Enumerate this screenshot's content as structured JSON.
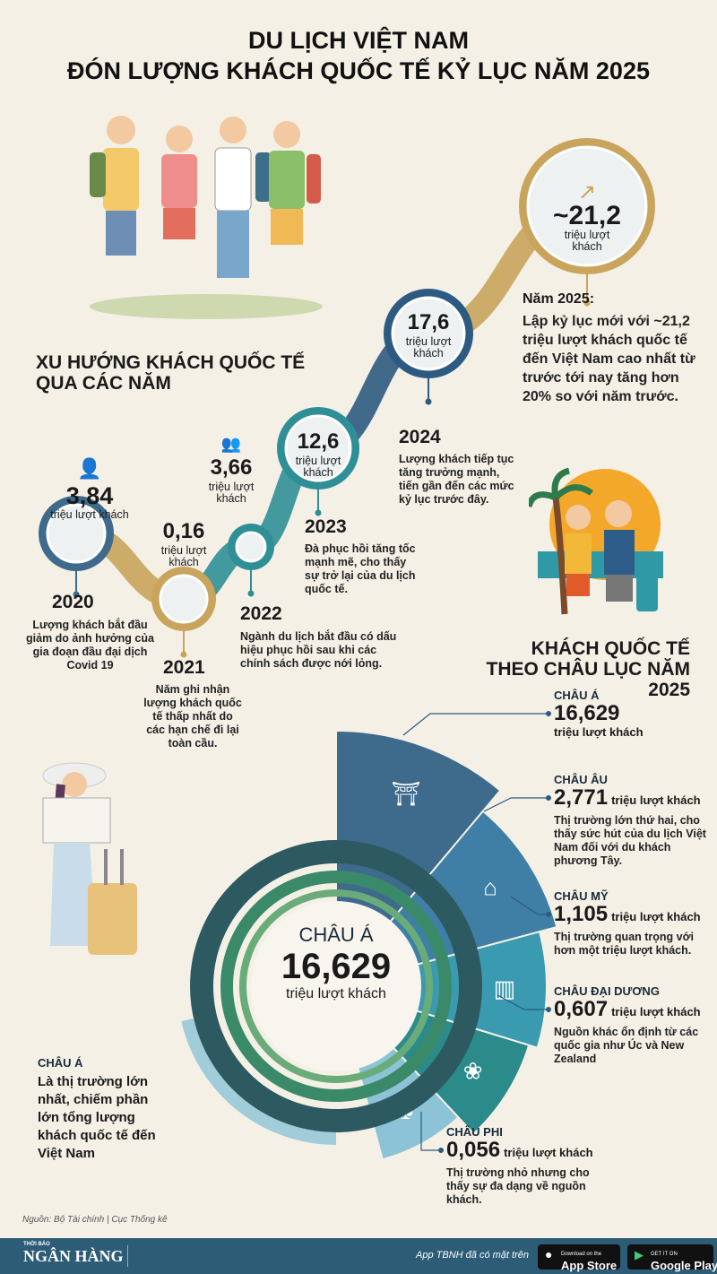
{
  "title": {
    "line1": "DU LỊCH VIỆT NAM",
    "line2": "ĐÓN LƯỢNG KHÁCH QUỐC TẾ KỶ LỤC NĂM 2025"
  },
  "trend": {
    "heading_line1": "XU HƯỚNG KHÁCH QUỐC TẾ",
    "heading_line2": "QUA CÁC NĂM"
  },
  "unit_label": "triệu lượt khách",
  "chart_data": [
    {
      "type": "line",
      "title": "XU HƯỚNG KHÁCH QUỐC TẾ QUA CÁC NĂM",
      "unit": "triệu lượt khách",
      "points": [
        {
          "year": "2020",
          "value": 3.84,
          "label": "3,84",
          "desc": "Lượng khách bắt đầu giảm do ảnh hưởng của gia đoạn đầu đại dịch Covid 19",
          "color": "#3e6a8c"
        },
        {
          "year": "2021",
          "value": 0.16,
          "label": "0,16",
          "desc": "Năm ghi nhận lượng khách quốc tế thấp nhất do các hạn chế đi lại toàn cầu.",
          "color": "#c9a45c"
        },
        {
          "year": "2022",
          "value": 3.66,
          "label": "3,66",
          "desc": "Ngành du lịch bắt đầu có dấu hiệu phục hồi sau khi các chính sách được nới lỏng.",
          "color": "#2f8f96"
        },
        {
          "year": "2023",
          "value": 12.6,
          "label": "12,6",
          "desc": "Đà phục hồi tăng tốc mạnh mẽ, cho thấy sự trở lại của du lịch quốc tế.",
          "color": "#2f8f96"
        },
        {
          "year": "2024",
          "value": 17.6,
          "label": "17,6",
          "desc": "Lượng khách tiếp tục tăng trưởng mạnh, tiến gần đến các mức kỷ lục trước đây.",
          "color": "#2c5a80"
        },
        {
          "year": "2025",
          "value": 21.2,
          "label": "~21,2",
          "desc_title": "Năm 2025:",
          "desc": "Lập kỷ lục mới với ~21,2 triệu lượt khách quốc tế đến Việt Nam cao nhất từ trước tới nay tăng hơn 20% so với năm trước.",
          "color": "#c9a45c"
        }
      ]
    },
    {
      "type": "pie",
      "title": "KHÁCH QUỐC TẾ THEO CHÂU LỤC NĂM 2025",
      "unit": "triệu lượt khách",
      "slices": [
        {
          "name": "CHÂU Á",
          "value": 16.629,
          "label": "16,629",
          "desc": "",
          "color": "#3e6a8c",
          "icon": "pagoda-icon"
        },
        {
          "name": "CHÂU ÂU",
          "value": 2.771,
          "label": "2,771",
          "desc": "Thị trường lớn thứ hai, cho thấy sức hút của du lịch Việt Nam đối với du khách phương Tây.",
          "color": "#3f7fa6",
          "icon": "arc-de-triomphe-icon"
        },
        {
          "name": "CHÂU MỸ",
          "value": 1.105,
          "label": "1,105",
          "desc": "Thị trường quan trọng với hơn một triệu lượt khách.",
          "color": "#3a9bb0",
          "icon": "skyscraper-icon"
        },
        {
          "name": "CHÂU ĐẠI DƯƠNG",
          "value": 0.607,
          "label": "0,607",
          "desc": "Nguồn khác ổn định từ các quốc gia như Úc và New Zealand",
          "color": "#2b8a8a",
          "icon": "kangaroo-icon"
        },
        {
          "name": "CHÂU PHI",
          "value": 0.056,
          "label": "0,056",
          "desc": "Thị trường nhỏ nhưng cho thấy sự đa dạng về nguồn khách.",
          "color": "#8cc3d6",
          "icon": "acacia-tree-icon"
        }
      ]
    }
  ],
  "continents": {
    "heading_line1": "KHÁCH QUỐC TẾ",
    "heading_line2": "THEO CHÂU LỤC NĂM 2025",
    "center_name": "CHÂU Á",
    "center_value": "16,629",
    "center_unit": "triệu lượt khách",
    "asia_note_title": "CHÂU Á",
    "asia_note": "Là thị trường lớn nhất, chiếm phần lớn tổng lượng khách quốc tế đến Việt Nam"
  },
  "source": "Nguồn: Bộ Tài chính | Cục Thống kê",
  "footer": {
    "brand_small": "THỜI BÁO",
    "brand": "NGÂN HÀNG",
    "app_text": "App TBNH đã có mặt trên",
    "appstore_small": "Download on the",
    "appstore": "App Store",
    "googleplay_small": "GET IT ON",
    "googleplay": "Google Play"
  }
}
